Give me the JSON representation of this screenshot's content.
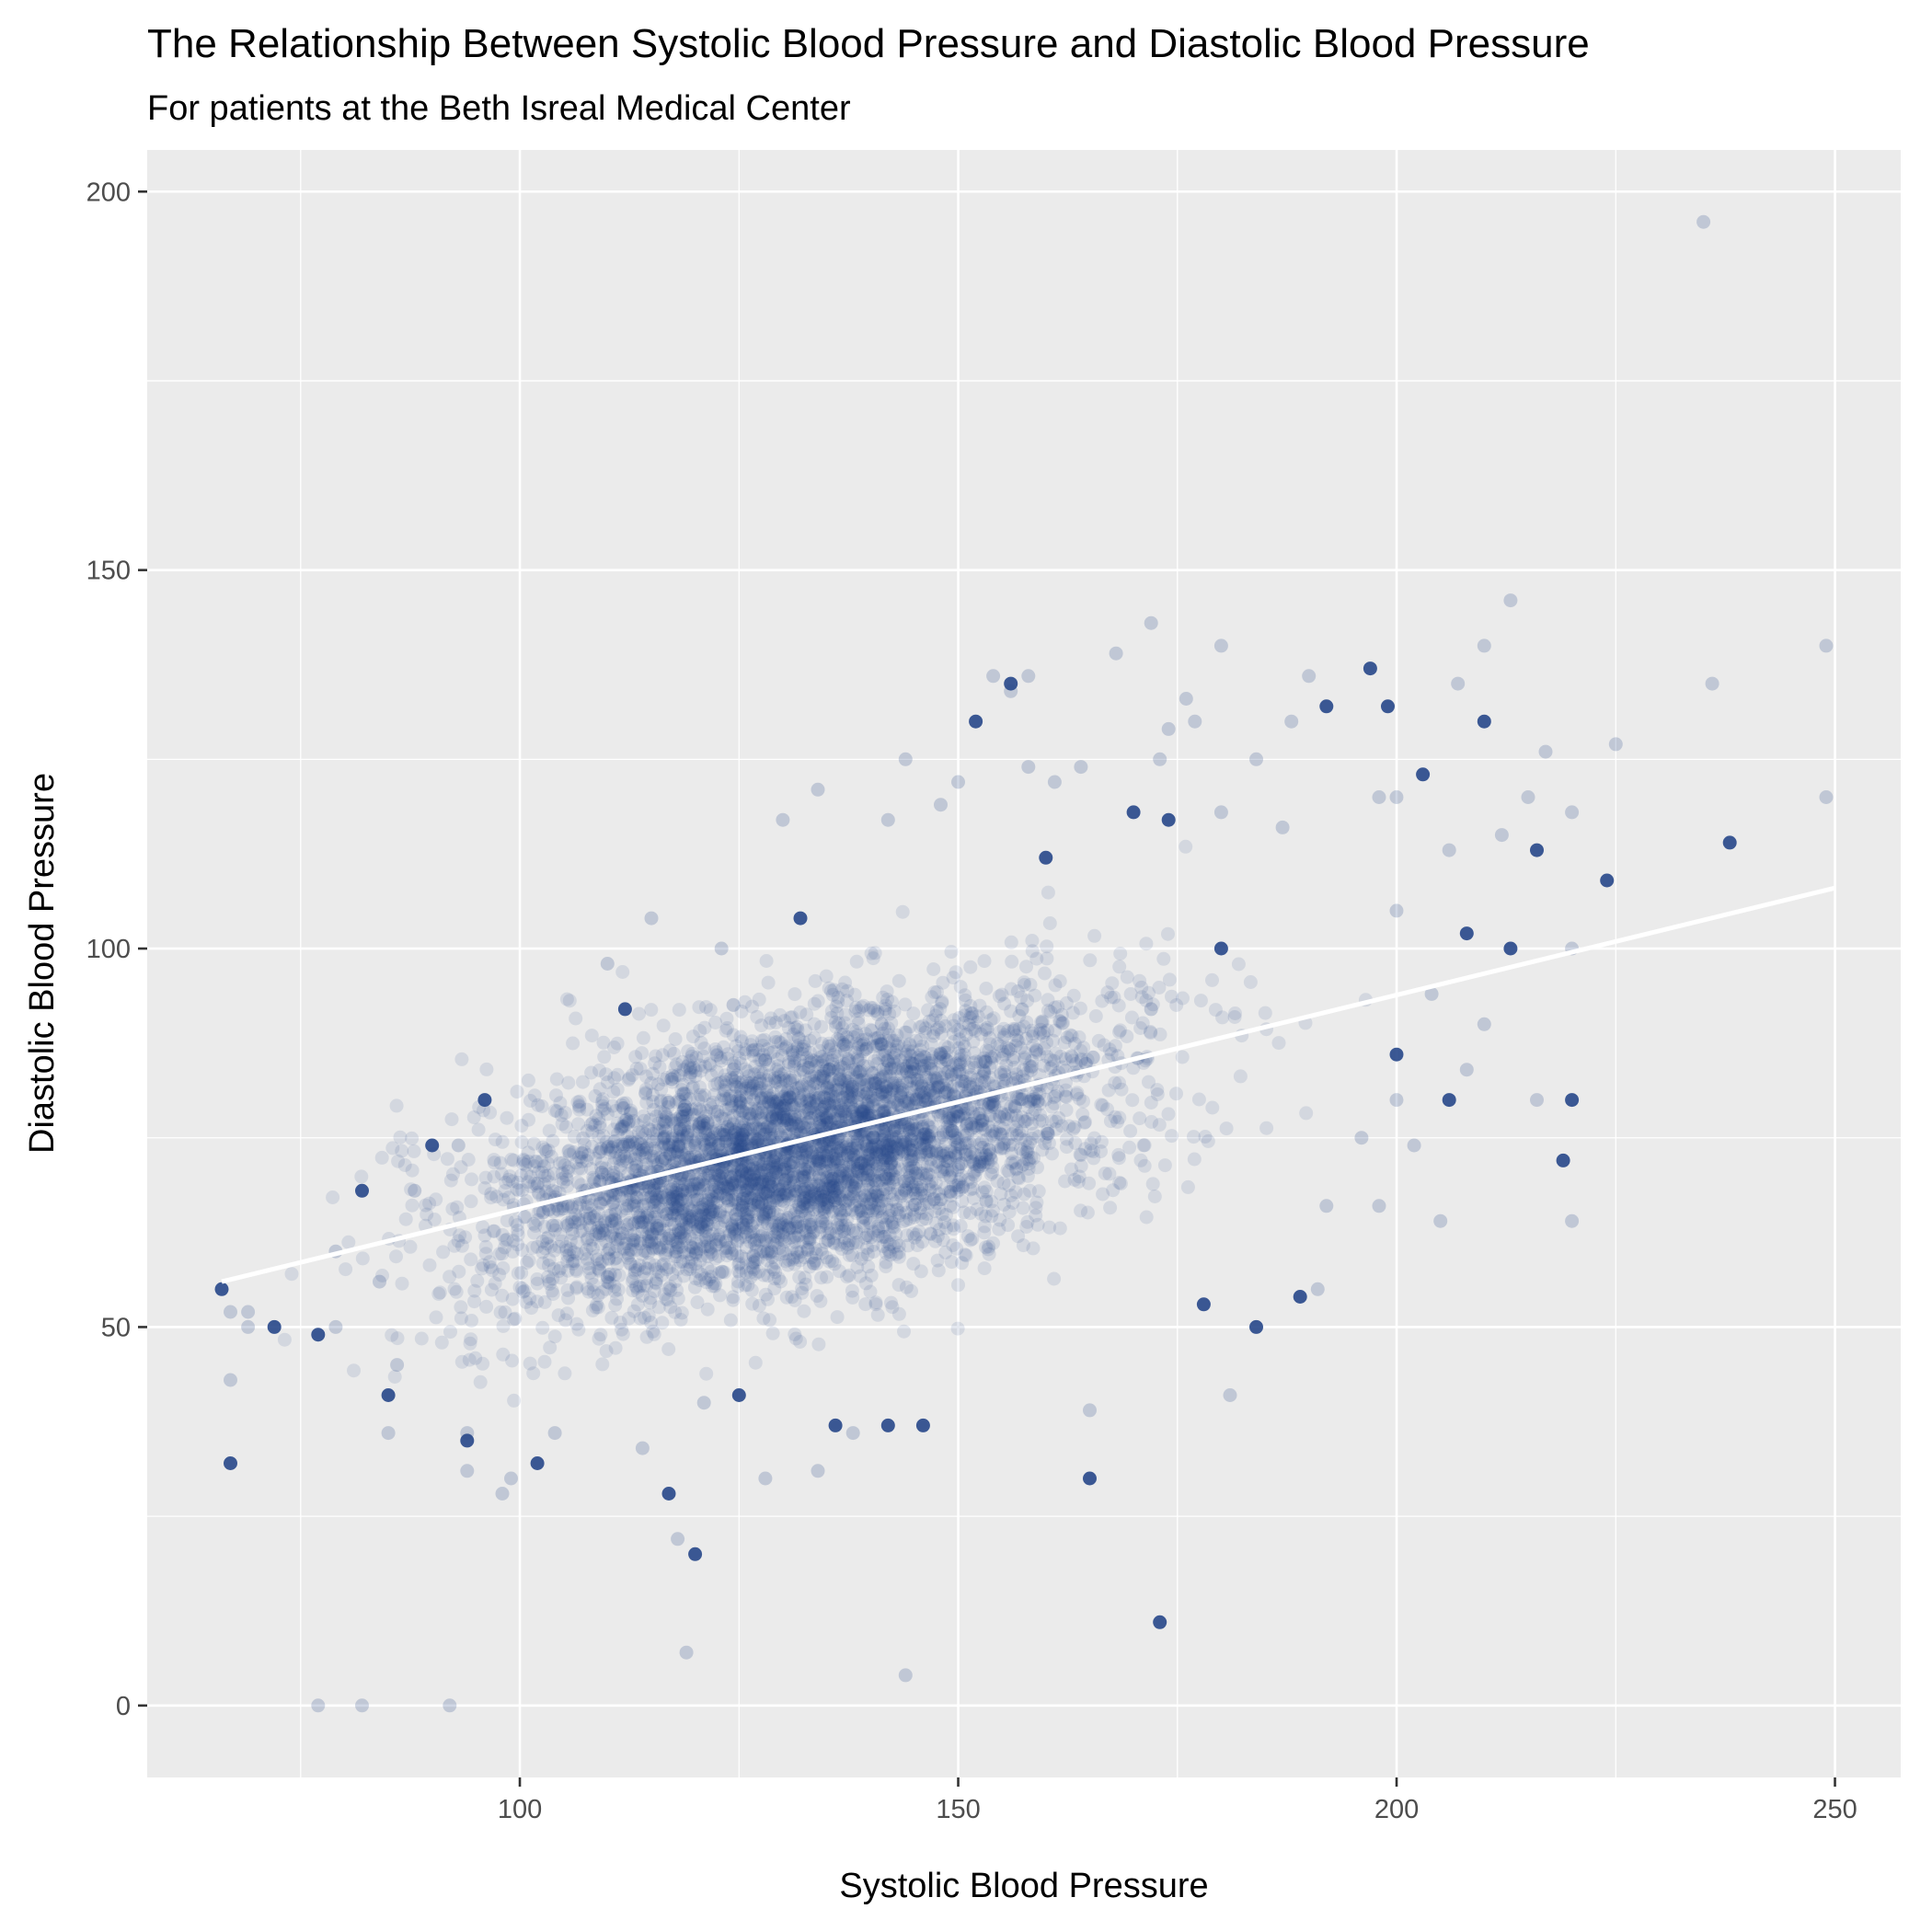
{
  "chart_data": {
    "type": "scatter",
    "title": "The Relationship Between Systolic Blood Pressure and Diastolic Blood Pressure",
    "subtitle": "For patients at the Beth Isreal Medical Center",
    "xlabel": "Systolic Blood Pressure",
    "ylabel": "Diastolic Blood Pressure",
    "xlim": [
      57.5,
      257.5
    ],
    "ylim": [
      -9.5,
      205.5
    ],
    "x_ticks": [
      100,
      150,
      200,
      250
    ],
    "y_ticks": [
      0,
      50,
      100,
      150,
      200
    ],
    "x_minor": [
      75,
      125,
      175,
      225
    ],
    "y_minor": [
      25,
      75,
      125,
      175
    ],
    "grid": true,
    "panel_color": "#ebebeb",
    "point_color": "#27478a",
    "line_color": "#ffffff",
    "fit_line": {
      "x": [
        66,
        250
      ],
      "y": [
        56,
        108
      ]
    },
    "cluster": {
      "center": [
        132,
        73
      ],
      "sd": [
        17,
        8.5
      ],
      "slope": 0.28
    },
    "series": [
      {
        "points": [
          [
            66,
            55
          ],
          [
            67,
            43
          ],
          [
            67,
            52
          ],
          [
            67,
            32
          ],
          [
            69,
            52
          ],
          [
            69,
            50
          ],
          [
            72,
            50
          ],
          [
            77,
            0
          ],
          [
            82,
            0
          ],
          [
            77,
            49
          ],
          [
            79,
            60
          ],
          [
            79,
            50
          ],
          [
            82,
            68
          ],
          [
            84,
            56
          ],
          [
            86,
            45
          ],
          [
            85,
            41
          ],
          [
            85,
            36
          ],
          [
            88,
            68
          ],
          [
            90,
            74
          ],
          [
            92,
            0
          ],
          [
            93,
            74
          ],
          [
            94,
            35
          ],
          [
            94,
            36
          ],
          [
            94,
            31
          ],
          [
            96,
            80
          ],
          [
            98,
            28
          ],
          [
            99,
            30
          ],
          [
            102,
            32
          ],
          [
            104,
            36
          ],
          [
            110,
            98
          ],
          [
            112,
            92
          ],
          [
            114,
            34
          ],
          [
            115,
            104
          ],
          [
            117,
            28
          ],
          [
            118,
            22
          ],
          [
            119,
            7
          ],
          [
            120,
            20
          ],
          [
            121,
            40
          ],
          [
            123,
            100
          ],
          [
            125,
            41
          ],
          [
            128,
            30
          ],
          [
            130,
            117
          ],
          [
            132,
            104
          ],
          [
            134,
            121
          ],
          [
            134,
            31
          ],
          [
            136,
            37
          ],
          [
            138,
            36
          ],
          [
            142,
            117
          ],
          [
            142,
            37
          ],
          [
            144,
            125
          ],
          [
            144,
            4
          ],
          [
            146,
            37
          ],
          [
            148,
            119
          ],
          [
            150,
            122
          ],
          [
            152,
            130
          ],
          [
            154,
            136
          ],
          [
            156,
            134
          ],
          [
            156,
            135
          ],
          [
            158,
            136
          ],
          [
            158,
            124
          ],
          [
            160,
            112
          ],
          [
            161,
            122
          ],
          [
            164,
            124
          ],
          [
            165,
            30
          ],
          [
            165,
            39
          ],
          [
            168,
            139
          ],
          [
            170,
            118
          ],
          [
            172,
            143
          ],
          [
            172,
            92
          ],
          [
            173,
            11
          ],
          [
            173,
            125
          ],
          [
            174,
            129
          ],
          [
            174,
            117
          ],
          [
            176,
            133
          ],
          [
            177,
            130
          ],
          [
            178,
            53
          ],
          [
            180,
            140
          ],
          [
            180,
            118
          ],
          [
            180,
            100
          ],
          [
            181,
            41
          ],
          [
            184,
            125
          ],
          [
            184,
            50
          ],
          [
            187,
            116
          ],
          [
            188,
            130
          ],
          [
            189,
            54
          ],
          [
            190,
            136
          ],
          [
            191,
            55
          ],
          [
            192,
            132
          ],
          [
            192,
            66
          ],
          [
            196,
            75
          ],
          [
            197,
            137
          ],
          [
            198,
            120
          ],
          [
            198,
            66
          ],
          [
            199,
            132
          ],
          [
            200,
            120
          ],
          [
            200,
            105
          ],
          [
            200,
            86
          ],
          [
            200,
            80
          ],
          [
            202,
            74
          ],
          [
            203,
            123
          ],
          [
            204,
            94
          ],
          [
            205,
            64
          ],
          [
            206,
            80
          ],
          [
            206,
            113
          ],
          [
            207,
            135
          ],
          [
            208,
            102
          ],
          [
            208,
            84
          ],
          [
            210,
            140
          ],
          [
            210,
            130
          ],
          [
            210,
            90
          ],
          [
            212,
            115
          ],
          [
            213,
            100
          ],
          [
            213,
            146
          ],
          [
            215,
            120
          ],
          [
            216,
            113
          ],
          [
            216,
            80
          ],
          [
            217,
            126
          ],
          [
            219,
            72
          ],
          [
            220,
            100
          ],
          [
            220,
            118
          ],
          [
            220,
            80
          ],
          [
            220,
            64
          ],
          [
            225,
            127
          ],
          [
            224,
            109
          ],
          [
            235,
            196
          ],
          [
            236,
            135
          ],
          [
            238,
            114
          ],
          [
            249,
            140
          ],
          [
            249,
            120
          ]
        ]
      }
    ]
  }
}
